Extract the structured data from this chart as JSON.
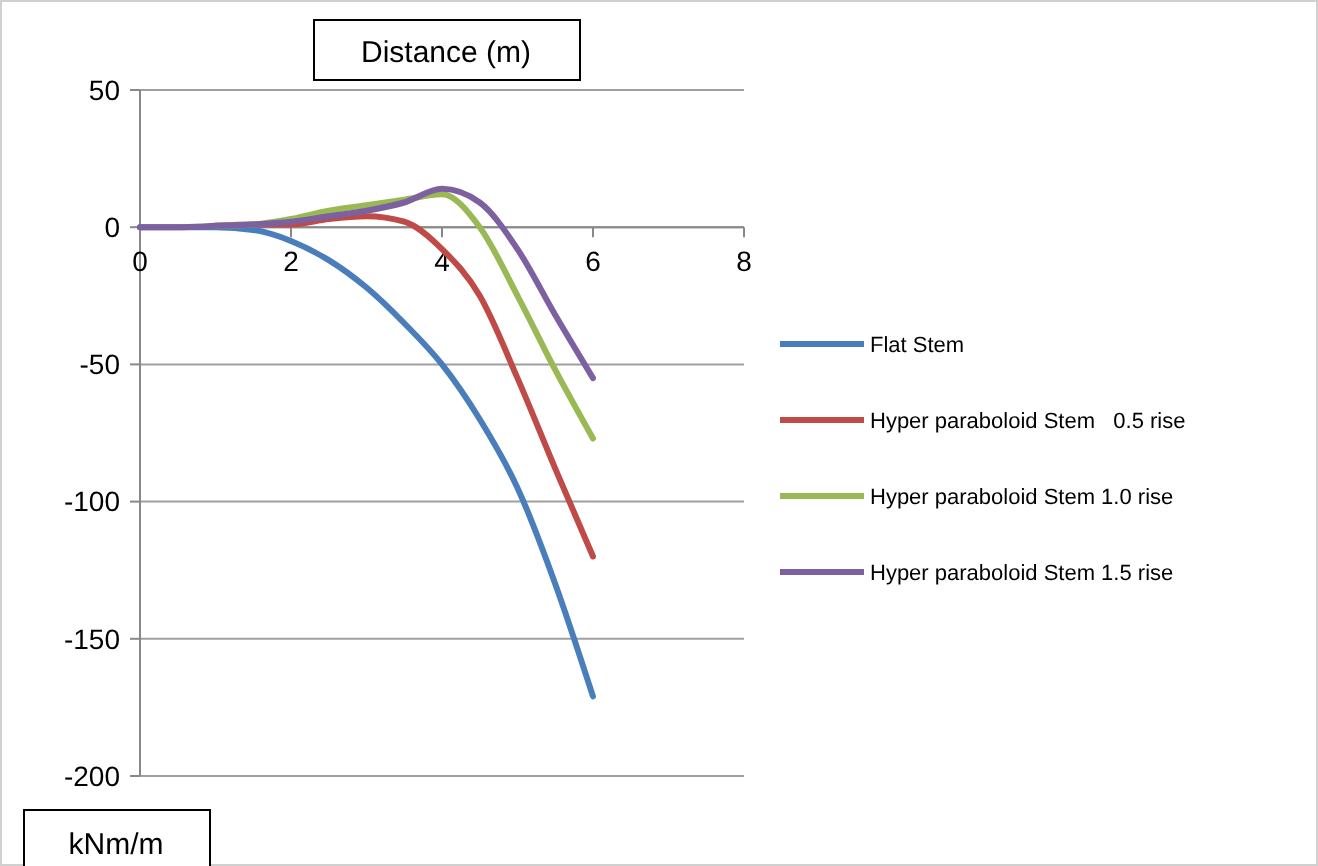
{
  "chart_data": {
    "type": "line",
    "xlabel": "Distance (m)",
    "ylabel": "kNm/m",
    "x": [
      0,
      0.5,
      1,
      1.5,
      2,
      2.5,
      3,
      3.5,
      4,
      4.5,
      5,
      5.5,
      6
    ],
    "xlim": [
      0,
      8
    ],
    "xticks": [
      0,
      2,
      4,
      6,
      8
    ],
    "ylim": [
      -200,
      50
    ],
    "yticks": [
      -200,
      -150,
      -100,
      -50,
      0,
      50
    ],
    "grid": "y",
    "legend": "right",
    "marker": "none",
    "line_style": "solid",
    "series": [
      {
        "name": "Flat Stem",
        "color": "#4a7ebb",
        "values": [
          0,
          0,
          0,
          -1,
          -5,
          -12,
          -22,
          -35,
          -50,
          -70,
          -95,
          -130,
          -171
        ]
      },
      {
        "name": "Hyper paraboloid Stem   0.5 rise",
        "color": "#be4b48",
        "values": [
          null,
          null,
          0.5,
          1,
          1,
          3,
          4,
          2,
          -8,
          -25,
          -55,
          -88,
          -120
        ]
      },
      {
        "name": "Hyper paraboloid Stem 1.0 rise",
        "color": "#98b954",
        "values": [
          null,
          null,
          0.5,
          1,
          3,
          6,
          8,
          10,
          12,
          0,
          -25,
          -52,
          -77
        ]
      },
      {
        "name": "Hyper paraboloid Stem 1.5 rise",
        "color": "#7d60a0",
        "values": [
          0,
          0,
          0.5,
          1,
          2,
          4,
          6,
          9,
          14,
          9,
          -8,
          -32,
          -55
        ]
      }
    ]
  }
}
